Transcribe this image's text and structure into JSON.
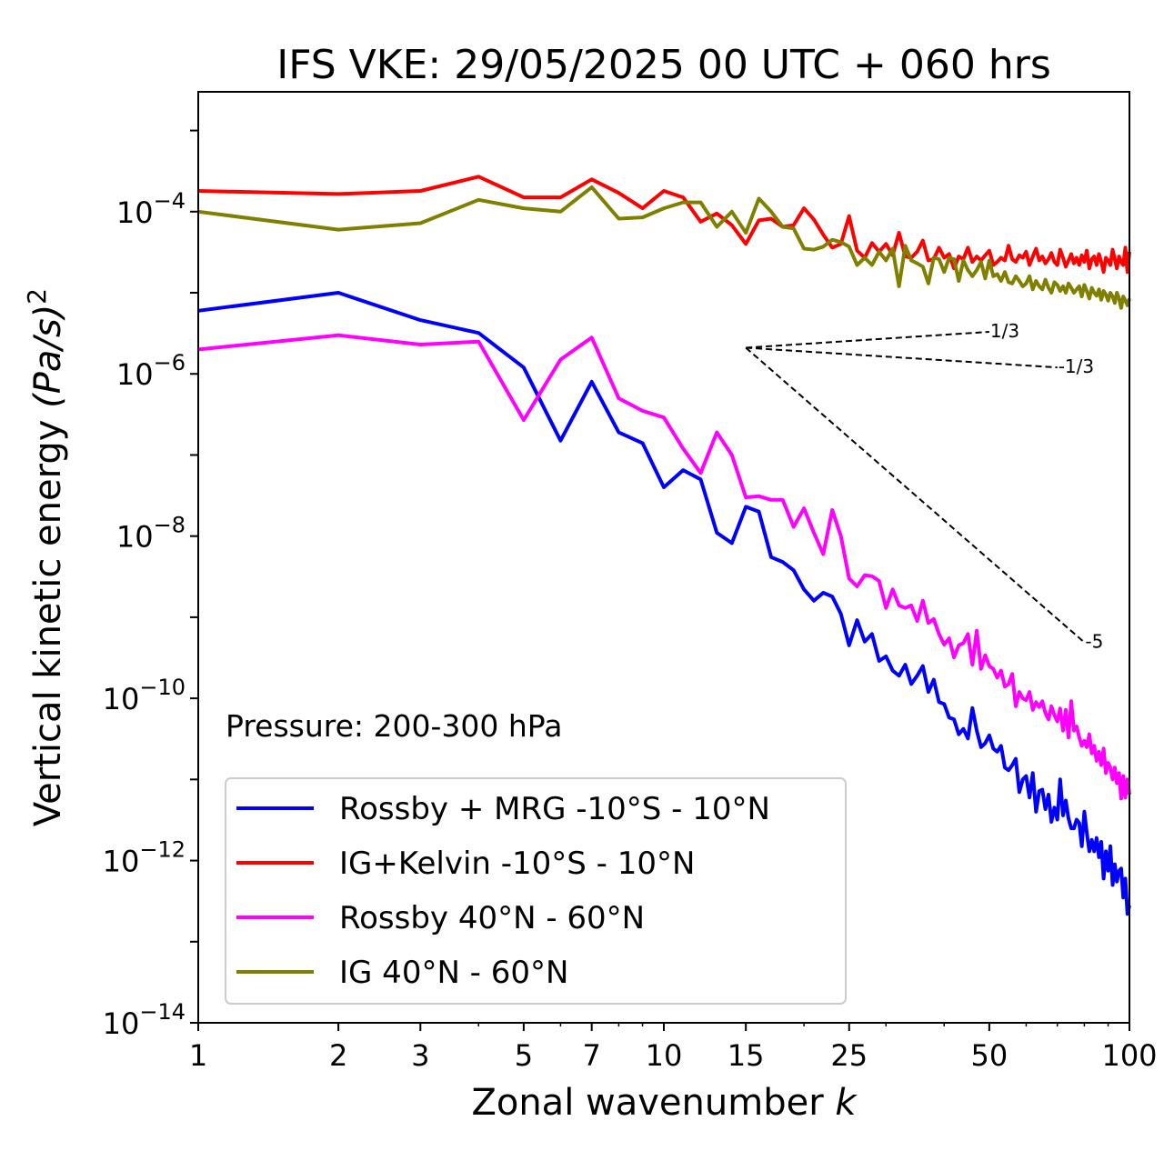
{
  "chart_data": {
    "type": "line",
    "title": "IFS VKE: 29/05/2025 00 UTC + 060 hrs",
    "xlabel": "Zonal wavenumber",
    "xlabel_italic": "k",
    "ylabel": "Vertical kinetic energy",
    "ylabel_unit": "(Pa/s)",
    "ylabel_unit_power": "2",
    "xscale": "log",
    "yscale": "log",
    "xlim": [
      1,
      100
    ],
    "ylim": [
      1e-14,
      0.003
    ],
    "x_ticks": [
      1,
      2,
      3,
      5,
      7,
      10,
      15,
      25,
      50,
      100
    ],
    "y_ticks": [
      {
        "value": 1e-14,
        "base": "10",
        "exp": "−14"
      },
      {
        "value": 1e-12,
        "base": "10",
        "exp": "−12"
      },
      {
        "value": 1e-10,
        "base": "10",
        "exp": "−10"
      },
      {
        "value": 1e-08,
        "base": "10",
        "exp": "−8"
      },
      {
        "value": 1e-06,
        "base": "10",
        "exp": "−6"
      },
      {
        "value": 0.0001,
        "base": "10",
        "exp": "−4"
      }
    ],
    "annotation": "Pressure: 200-300 hPa",
    "legend_position": "lower-left",
    "series": [
      {
        "name": "Rossby + MRG -10°S - 10°N",
        "color": "#0000ff",
        "x": [
          1,
          2,
          3,
          4,
          5,
          6,
          7,
          8,
          9,
          10,
          11,
          12,
          13,
          14,
          15,
          16,
          17,
          18,
          19,
          20,
          21,
          22,
          23,
          24,
          25,
          26,
          27,
          28,
          29,
          30,
          31,
          32,
          33,
          34,
          35,
          36,
          37,
          38,
          39,
          40,
          41,
          42,
          43,
          44,
          45,
          46,
          47,
          48,
          49,
          50,
          51,
          52,
          53,
          54,
          55,
          56,
          57,
          58,
          59,
          60,
          61,
          62,
          63,
          64,
          65,
          66,
          67,
          68,
          69,
          70,
          71,
          72,
          73,
          74,
          75,
          76,
          77,
          78,
          79,
          80,
          81,
          82,
          83,
          84,
          85,
          86,
          87,
          88,
          89,
          90,
          91,
          92,
          93,
          94,
          95,
          96,
          97,
          98,
          99,
          100
        ],
        "y": [
          6e-06,
          1e-05,
          4.6e-06,
          3.2e-06,
          1.2e-06,
          1.5e-07,
          8e-07,
          1.9e-07,
          1.4e-07,
          4e-08,
          6.5e-08,
          5e-08,
          1.1e-08,
          8.2e-09,
          2.3e-08,
          2e-08,
          5.5e-09,
          4.8e-09,
          3.8e-09,
          2.2e-09,
          1.6e-09,
          2e-09,
          1.8e-09,
          1.1e-09,
          4.5e-10,
          9.2e-10,
          5e-10,
          6.2e-10,
          2.9e-10,
          3.3e-10,
          2.2e-10,
          1.9e-10,
          2.6e-10,
          1.5e-10,
          1.9e-10,
          2.5e-10,
          1.2e-10,
          1.7e-10,
          9e-11,
          8.5e-11,
          5.8e-11,
          5.5e-11,
          3.6e-11,
          4.2e-11,
          3.2e-11,
          7.6e-11,
          4e-11,
          2.5e-11,
          2.8e-11,
          3.5e-11,
          2.4e-11,
          2.2e-11,
          2.6e-11,
          1.4e-11,
          1.3e-11,
          1.5e-11,
          1.8e-11,
          7e-12,
          1e-11,
          1.1e-11,
          6e-12,
          1.2e-11,
          4e-12,
          7.2e-12,
          7.5e-12,
          4.3e-12,
          6.5e-12,
          3e-12,
          4.5e-12,
          3.2e-12,
          1e-11,
          3.6e-12,
          5.5e-12,
          3.3e-12,
          2.5e-12,
          2.5e-12,
          3.2e-12,
          2.9e-12,
          1.5e-12,
          4e-12,
          2.2e-12,
          1.3e-12,
          1.8e-12,
          1.3e-12,
          1.9e-12,
          1.1e-12,
          1.7e-12,
          6e-13,
          1.3e-12,
          7.5e-13,
          1.5e-12,
          5e-13,
          9e-13,
          5.5e-13,
          7.5e-13,
          8e-13,
          3.5e-13,
          6e-13,
          2.2e-13,
          2.8e-13
        ]
      },
      {
        "name": "IG+Kelvin -10°S - 10°N",
        "color": "#ff0000",
        "x": [
          1,
          2,
          3,
          4,
          5,
          6,
          7,
          8,
          9,
          10,
          11,
          12,
          13,
          14,
          15,
          16,
          17,
          18,
          19,
          20,
          21,
          22,
          23,
          24,
          25,
          26,
          27,
          28,
          29,
          30,
          31,
          32,
          33,
          34,
          35,
          36,
          37,
          38,
          39,
          40,
          41,
          42,
          43,
          44,
          45,
          46,
          47,
          48,
          49,
          50,
          51,
          52,
          53,
          54,
          55,
          56,
          57,
          58,
          59,
          60,
          61,
          62,
          63,
          64,
          65,
          66,
          67,
          68,
          69,
          70,
          71,
          72,
          73,
          74,
          75,
          76,
          77,
          78,
          79,
          80,
          81,
          82,
          83,
          84,
          85,
          86,
          87,
          88,
          89,
          90,
          91,
          92,
          93,
          94,
          95,
          96,
          97,
          98,
          99,
          100
        ],
        "y": [
          0.00018,
          0.000165,
          0.00018,
          0.00027,
          0.00015,
          0.00015,
          0.00025,
          0.00017,
          0.00011,
          0.00018,
          0.00015,
          7.5e-05,
          9.5e-05,
          6.8e-05,
          4e-05,
          7.8e-05,
          8.2e-05,
          6.5e-05,
          6.8e-05,
          0.00011,
          8e-05,
          5.2e-05,
          3.6e-05,
          4e-05,
          8.8e-05,
          3.3e-05,
          2.7e-05,
          4.1e-05,
          3.2e-05,
          4e-05,
          2.9e-05,
          5.5e-05,
          2.8e-05,
          2.7e-05,
          3.2e-05,
          4.4e-05,
          2.5e-05,
          2.6e-05,
          3.6e-05,
          2.7e-05,
          3e-05,
          2e-05,
          2.8e-05,
          2.6e-05,
          3.6e-05,
          2.4e-05,
          2.8e-05,
          2.5e-05,
          2.9e-05,
          3.3e-05,
          2.2e-05,
          2.4e-05,
          2.7e-05,
          2.5e-05,
          3.8e-05,
          2.6e-05,
          2.4e-05,
          2.9e-05,
          2.7e-05,
          3.2e-05,
          2.2e-05,
          2.8e-05,
          3.5e-05,
          2.5e-05,
          2.8e-05,
          2.3e-05,
          2.6e-05,
          3.1e-05,
          2.4e-05,
          2.2e-05,
          3.4e-05,
          2.7e-05,
          2.1e-05,
          2.5e-05,
          3e-05,
          2.3e-05,
          2.7e-05,
          2.2e-05,
          2.9e-05,
          2.4e-05,
          3.3e-05,
          2e-05,
          2.6e-05,
          2.8e-05,
          2.2e-05,
          3e-05,
          2.4e-05,
          1.8e-05,
          2.7e-05,
          2.5e-05,
          2.2e-05,
          3.4e-05,
          2.6e-05,
          2e-05,
          2.8e-05,
          2.4e-05,
          2.2e-05,
          3.6e-05,
          1.8e-05,
          3.2e-05
        ]
      },
      {
        "name": "Rossby 40°N - 60°N",
        "color": "#ff00ff",
        "x": [
          1,
          2,
          3,
          4,
          5,
          6,
          7,
          8,
          9,
          10,
          11,
          12,
          13,
          14,
          15,
          16,
          17,
          18,
          19,
          20,
          21,
          22,
          23,
          24,
          25,
          26,
          27,
          28,
          29,
          30,
          31,
          32,
          33,
          34,
          35,
          36,
          37,
          38,
          39,
          40,
          41,
          42,
          43,
          44,
          45,
          46,
          47,
          48,
          49,
          50,
          51,
          52,
          53,
          54,
          55,
          56,
          57,
          58,
          59,
          60,
          61,
          62,
          63,
          64,
          65,
          66,
          67,
          68,
          69,
          70,
          71,
          72,
          73,
          74,
          75,
          76,
          77,
          78,
          79,
          80,
          81,
          82,
          83,
          84,
          85,
          86,
          87,
          88,
          89,
          90,
          91,
          92,
          93,
          94,
          95,
          96,
          97,
          98,
          99,
          100
        ],
        "y": [
          2e-06,
          3e-06,
          2.3e-06,
          2.5e-06,
          2.7e-07,
          1.5e-06,
          2.8e-06,
          5e-07,
          3.5e-07,
          2.9e-07,
          1.2e-07,
          6e-08,
          1.9e-07,
          1e-07,
          3e-08,
          3.1e-08,
          2.8e-08,
          2.8e-08,
          1.3e-08,
          2.2e-08,
          1.1e-08,
          6e-09,
          2.1e-08,
          1e-08,
          3e-09,
          2.4e-09,
          3.3e-09,
          3.2e-09,
          2.8e-09,
          1.3e-09,
          2.2e-09,
          1.4e-09,
          1.3e-09,
          1.4e-09,
          9e-10,
          1.6e-09,
          8.5e-10,
          9.5e-10,
          6.2e-10,
          4.6e-10,
          5.5e-10,
          3.2e-10,
          4.5e-10,
          4.8e-10,
          6.2e-10,
          2.6e-10,
          6.8e-10,
          2.3e-10,
          3.4e-10,
          2.5e-10,
          2.3e-10,
          1.8e-10,
          2.2e-10,
          1.4e-10,
          1.5e-10,
          2e-10,
          8e-11,
          1.2e-10,
          1e-10,
          9.5e-11,
          1.2e-10,
          7.2e-11,
          9e-11,
          7.8e-11,
          9.2e-11,
          6.6e-11,
          5.5e-11,
          8e-11,
          6.2e-11,
          5.2e-11,
          7.5e-11,
          4e-11,
          7.2e-11,
          3.3e-11,
          9.2e-11,
          4e-11,
          4.5e-11,
          3.3e-11,
          2.6e-11,
          3e-11,
          2.5e-11,
          3.6e-11,
          2.1e-11,
          2.6e-11,
          1.7e-11,
          2.2e-11,
          1.5e-11,
          2.4e-11,
          1.2e-11,
          1.6e-11,
          1.4e-11,
          1e-11,
          1.4e-11,
          9e-12,
          1.2e-11,
          5.8e-12,
          1.1e-11,
          6e-12,
          1e-11,
          6.5e-12
        ]
      },
      {
        "name": "IG 40°N - 60°N",
        "color": "#808000",
        "x": [
          1,
          2,
          3,
          4,
          5,
          6,
          7,
          8,
          9,
          10,
          11,
          12,
          13,
          14,
          15,
          16,
          17,
          18,
          19,
          20,
          21,
          22,
          23,
          24,
          25,
          26,
          27,
          28,
          29,
          30,
          31,
          32,
          33,
          34,
          35,
          36,
          37,
          38,
          39,
          40,
          41,
          42,
          43,
          44,
          45,
          46,
          47,
          48,
          49,
          50,
          51,
          52,
          53,
          54,
          55,
          56,
          57,
          58,
          59,
          60,
          61,
          62,
          63,
          64,
          65,
          66,
          67,
          68,
          69,
          70,
          71,
          72,
          73,
          74,
          75,
          76,
          77,
          78,
          79,
          80,
          81,
          82,
          83,
          84,
          85,
          86,
          87,
          88,
          89,
          90,
          91,
          92,
          93,
          94,
          95,
          96,
          97,
          98,
          99,
          100
        ],
        "y": [
          0.0001,
          6e-05,
          7.2e-05,
          0.00014,
          0.00011,
          0.0001,
          0.0002,
          8.2e-05,
          8.5e-05,
          0.00011,
          0.00013,
          0.00013,
          6.5e-05,
          0.0001,
          5.5e-05,
          0.000145,
          0.0001,
          6.5e-05,
          6.2e-05,
          3.5e-05,
          3.4e-05,
          3.7e-05,
          4.5e-05,
          4.2e-05,
          3.7e-05,
          2.2e-05,
          2.7e-05,
          2.2e-05,
          3.2e-05,
          2.5e-05,
          3.5e-05,
          1.2e-05,
          3.8e-05,
          2.5e-05,
          2.3e-05,
          2.1e-05,
          1.3e-05,
          2.7e-05,
          2.6e-05,
          1.8e-05,
          2.7e-05,
          2.6e-05,
          1.4e-05,
          2.5e-05,
          1.9e-05,
          1.6e-05,
          1.9e-05,
          2.4e-05,
          1.5e-05,
          2.5e-05,
          1.6e-05,
          1.7e-05,
          1.4e-05,
          1.8e-05,
          1.35e-05,
          1.3e-05,
          1.6e-05,
          1.4e-05,
          1.2e-05,
          1.3e-05,
          1.6e-05,
          1.1e-05,
          1.4e-05,
          1.2e-05,
          1.1e-05,
          1.45e-05,
          1.15e-05,
          1e-05,
          1.35e-05,
          1.25e-05,
          1.05e-05,
          1.2e-05,
          1e-05,
          1.3e-05,
          1.15e-05,
          1e-05,
          1.1e-05,
          1.2e-05,
          9e-06,
          1.25e-05,
          1.05e-05,
          8.5e-06,
          1.15e-05,
          1e-05,
          9.2e-06,
          1.1e-05,
          8.2e-06,
          1.05e-05,
          9.5e-06,
          8e-06,
          1e-05,
          9e-06,
          7.5e-06,
          1e-05,
          8.5e-06,
          6.5e-06,
          9e-06,
          8e-06,
          7e-06,
          8.5e-06
        ]
      }
    ],
    "reference_lines": [
      {
        "label": "1/3",
        "x": [
          15,
          50
        ],
        "y": [
          2.1e-06,
          3.3e-06
        ]
      },
      {
        "label": "-1/3",
        "x": [
          15,
          70
        ],
        "y": [
          2.1e-06,
          1.2e-06
        ]
      },
      {
        "label": "-5",
        "x": [
          15,
          80
        ],
        "y": [
          2.1e-06,
          4.9e-10
        ]
      }
    ]
  }
}
